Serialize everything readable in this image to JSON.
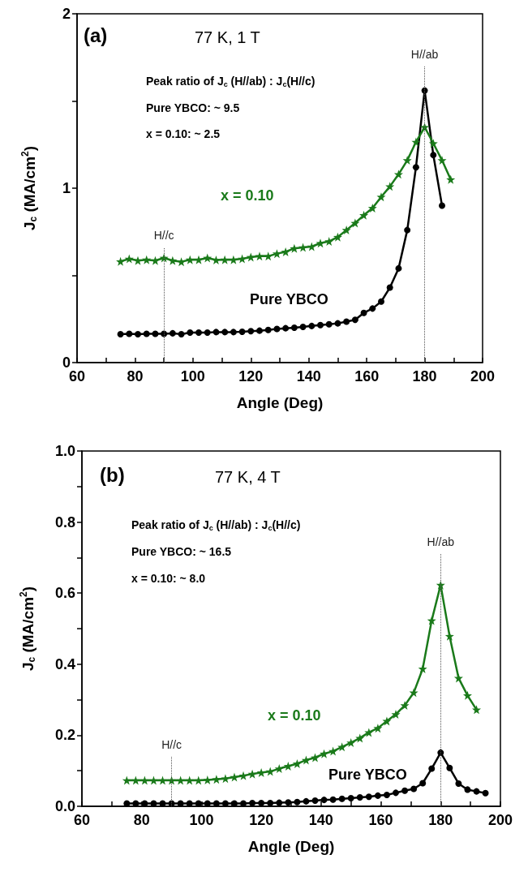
{
  "chart_data": [
    {
      "type": "line",
      "xlabel": "Angle (Deg)",
      "ylabel": "J$_{c}$ (MA/cm$^{2}$)",
      "xlim": [
        60,
        200
      ],
      "xticks": [
        60,
        {
          "value": 70,
          "label": null
        },
        80,
        {
          "value": 90,
          "label": null
        },
        100,
        {
          "value": 110,
          "label": null
        },
        120,
        {
          "value": 130,
          "label": null
        },
        140,
        {
          "value": 150,
          "label": null
        },
        160,
        {
          "value": 170,
          "label": null
        },
        180,
        {
          "value": 190,
          "label": null
        },
        200
      ],
      "ylim": [
        0,
        2
      ],
      "yticks": [
        0,
        {
          "value": 0.5,
          "label": null
        },
        1,
        {
          "value": 1.5,
          "label": null
        },
        2
      ],
      "grid": false,
      "legend": false,
      "line_style": "solid",
      "annotations": [
        "(a)",
        "77 K, 1 T",
        "Peak ratio of J$_{c}$ (H//ab) : J$_{c}$(H//c)",
        "Pure YBCO: ~ 9.5",
        "x = 0.10: ~ 2.5"
      ],
      "ref_lines": [
        {
          "axis": "x",
          "value": 90,
          "label": "H//c"
        },
        {
          "axis": "x",
          "value": 180,
          "label": "H//ab"
        }
      ],
      "series": [
        {
          "name": "Pure YBCO",
          "color": "#000000",
          "marker": "circle",
          "x": [
            75,
            78,
            81,
            84,
            87,
            90,
            93,
            96,
            99,
            102,
            105,
            108,
            111,
            114,
            117,
            120,
            123,
            126,
            129,
            132,
            135,
            138,
            141,
            144,
            147,
            150,
            153,
            156,
            159,
            162,
            165,
            168,
            171,
            174,
            177,
            180,
            183,
            186
          ],
          "values": [
            0.163,
            0.165,
            0.163,
            0.165,
            0.165,
            0.165,
            0.168,
            0.163,
            0.172,
            0.172,
            0.172,
            0.175,
            0.175,
            0.175,
            0.177,
            0.18,
            0.183,
            0.187,
            0.193,
            0.197,
            0.2,
            0.205,
            0.21,
            0.215,
            0.22,
            0.225,
            0.235,
            0.245,
            0.285,
            0.31,
            0.35,
            0.43,
            0.54,
            0.76,
            1.12,
            1.56,
            1.19,
            0.9
          ]
        },
        {
          "name": "x = 0.10",
          "color": "#1a7a1a",
          "marker": "star",
          "x": [
            75,
            78,
            81,
            84,
            87,
            90,
            93,
            96,
            99,
            102,
            105,
            108,
            111,
            114,
            117,
            120,
            123,
            126,
            129,
            132,
            135,
            138,
            141,
            144,
            147,
            150,
            153,
            156,
            159,
            162,
            165,
            168,
            171,
            174,
            177,
            180,
            183,
            186,
            189
          ],
          "values": [
            0.58,
            0.595,
            0.585,
            0.59,
            0.585,
            0.6,
            0.585,
            0.578,
            0.59,
            0.59,
            0.6,
            0.588,
            0.59,
            0.59,
            0.595,
            0.605,
            0.61,
            0.61,
            0.625,
            0.635,
            0.655,
            0.66,
            0.665,
            0.685,
            0.695,
            0.72,
            0.76,
            0.8,
            0.845,
            0.886,
            0.95,
            1.01,
            1.08,
            1.16,
            1.265,
            1.35,
            1.257,
            1.16,
            1.05
          ]
        }
      ]
    },
    {
      "type": "line",
      "xlabel": "Angle (Deg)",
      "ylabel": "J$_{c}$ (MA/cm$^{2}$)",
      "xlim": [
        60,
        200
      ],
      "xticks": [
        60,
        {
          "value": 70,
          "label": null
        },
        80,
        {
          "value": 90,
          "label": null
        },
        100,
        {
          "value": 110,
          "label": null
        },
        120,
        {
          "value": 130,
          "label": null
        },
        140,
        {
          "value": 150,
          "label": null
        },
        160,
        {
          "value": 170,
          "label": null
        },
        180,
        {
          "value": 190,
          "label": null
        },
        200
      ],
      "ylim": [
        0,
        1
      ],
      "yticks": [
        {
          "value": 0,
          "label": "0.0"
        },
        {
          "value": 0.1,
          "label": null
        },
        0.2,
        {
          "value": 0.3,
          "label": null
        },
        0.4,
        {
          "value": 0.5,
          "label": null
        },
        0.6,
        {
          "value": 0.7,
          "label": null
        },
        0.8,
        {
          "value": 0.9,
          "label": null
        },
        {
          "value": 1,
          "label": "1.0"
        }
      ],
      "grid": false,
      "legend": false,
      "line_style": "solid",
      "annotations": [
        "(b)",
        "77 K, 4 T",
        "Peak ratio of J$_{c}$ (H//ab) : J$_{c}$(H//c)",
        "Pure YBCO: ~ 16.5",
        "x = 0.10: ~ 8.0"
      ],
      "ref_lines": [
        {
          "axis": "x",
          "value": 90,
          "label": "H//c"
        },
        {
          "axis": "x",
          "value": 180,
          "label": "H//ab"
        }
      ],
      "series": [
        {
          "name": "Pure YBCO",
          "color": "#000000",
          "marker": "circle",
          "x": [
            75,
            78,
            81,
            84,
            87,
            90,
            93,
            96,
            99,
            102,
            105,
            108,
            111,
            114,
            117,
            120,
            123,
            126,
            129,
            132,
            135,
            138,
            141,
            144,
            147,
            150,
            153,
            156,
            159,
            162,
            165,
            168,
            171,
            174,
            177,
            180,
            183,
            186,
            189,
            192,
            195
          ],
          "values": [
            0.008,
            0.008,
            0.008,
            0.008,
            0.008,
            0.008,
            0.008,
            0.008,
            0.008,
            0.008,
            0.008,
            0.008,
            0.008,
            0.008,
            0.009,
            0.009,
            0.009,
            0.01,
            0.011,
            0.012,
            0.014,
            0.016,
            0.018,
            0.019,
            0.021,
            0.023,
            0.025,
            0.027,
            0.03,
            0.032,
            0.038,
            0.044,
            0.049,
            0.065,
            0.106,
            0.151,
            0.108,
            0.064,
            0.047,
            0.042,
            0.037
          ]
        },
        {
          "name": "x = 0.10",
          "color": "#1a7a1a",
          "marker": "star",
          "x": [
            75,
            78,
            81,
            84,
            87,
            90,
            93,
            96,
            99,
            102,
            105,
            108,
            111,
            114,
            117,
            120,
            123,
            126,
            129,
            132,
            135,
            138,
            141,
            144,
            147,
            150,
            153,
            156,
            159,
            162,
            165,
            168,
            171,
            174,
            177,
            180,
            183,
            186,
            189,
            192
          ],
          "values": [
            0.073,
            0.073,
            0.073,
            0.073,
            0.073,
            0.073,
            0.073,
            0.073,
            0.073,
            0.074,
            0.076,
            0.078,
            0.082,
            0.086,
            0.091,
            0.095,
            0.098,
            0.106,
            0.113,
            0.12,
            0.13,
            0.137,
            0.148,
            0.155,
            0.167,
            0.179,
            0.192,
            0.208,
            0.22,
            0.24,
            0.259,
            0.284,
            0.32,
            0.387,
            0.523,
            0.623,
            0.479,
            0.361,
            0.312,
            0.272
          ]
        }
      ]
    }
  ]
}
